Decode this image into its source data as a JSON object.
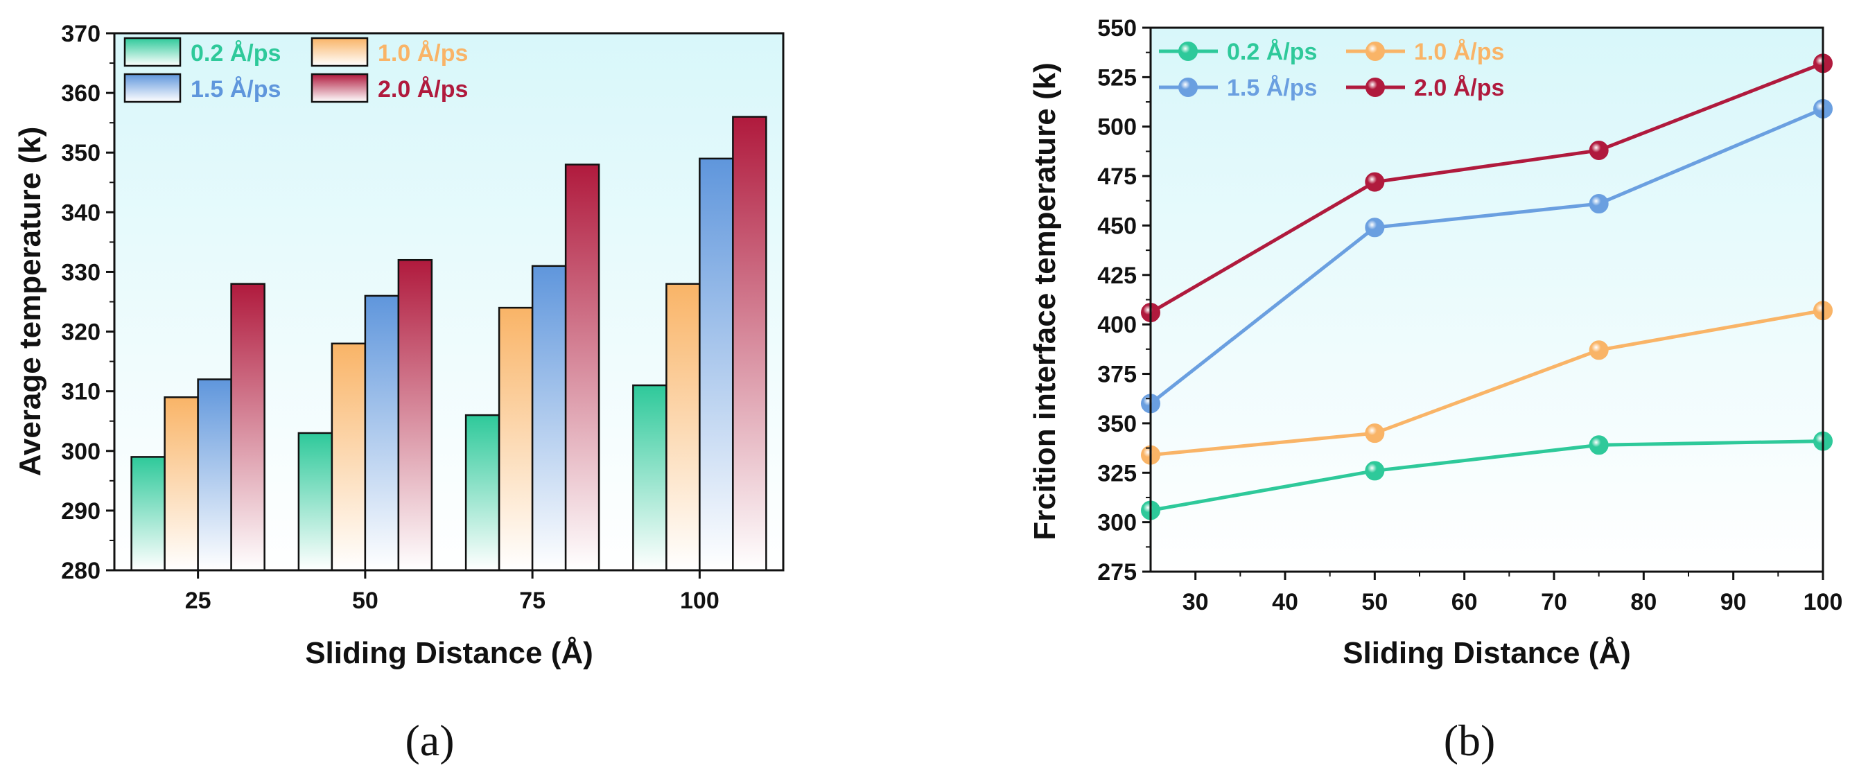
{
  "chart_data": [
    {
      "type": "bar",
      "panel_label": "(a)",
      "categories": [
        "25",
        "50",
        "75",
        "100"
      ],
      "series": [
        {
          "name": "0.2 Å/ps",
          "color": "#2ec99a",
          "values": [
            299,
            303,
            306,
            311
          ]
        },
        {
          "name": "1.0 Å/ps",
          "color": "#f9b467",
          "values": [
            309,
            318,
            324,
            328
          ]
        },
        {
          "name": "1.5 Å/ps",
          "color": "#5f96dc",
          "values": [
            312,
            326,
            331,
            349
          ]
        },
        {
          "name": "2.0 Å/ps",
          "color": "#b01a3d",
          "values": [
            328,
            332,
            348,
            356
          ]
        }
      ],
      "xlabel": "Sliding Distance (Å)",
      "ylabel": "Average temperature (k)",
      "ylim": [
        280,
        370
      ],
      "yticks": [
        "280",
        "290",
        "300",
        "310",
        "320",
        "330",
        "340",
        "350",
        "360",
        "370"
      ],
      "background": "#e8fbfd",
      "legend": "top-left"
    },
    {
      "type": "line",
      "panel_label": "(b)",
      "x": [
        25,
        50,
        75,
        100
      ],
      "series": [
        {
          "name": "0.2 Å/ps",
          "color": "#2ec99a",
          "values": [
            306,
            326,
            339,
            341
          ]
        },
        {
          "name": "1.0 Å/ps",
          "color": "#f9b467",
          "values": [
            334,
            345,
            387,
            407
          ]
        },
        {
          "name": "1.5 Å/ps",
          "color": "#6a9fe0",
          "values": [
            360,
            449,
            461,
            509
          ]
        },
        {
          "name": "2.0 Å/ps",
          "color": "#b01a3d",
          "values": [
            406,
            472,
            488,
            532
          ]
        }
      ],
      "xlabel": "Sliding Distance (Å)",
      "ylabel": "Frcition interface temperature (k)",
      "xlim": [
        25,
        100
      ],
      "ylim": [
        275,
        550
      ],
      "xticks": [
        "30",
        "40",
        "50",
        "60",
        "70",
        "80",
        "90",
        "100"
      ],
      "yticks": [
        "275",
        "300",
        "325",
        "350",
        "375",
        "400",
        "425",
        "450",
        "475",
        "500",
        "525",
        "550"
      ],
      "legend": "top-left"
    }
  ]
}
